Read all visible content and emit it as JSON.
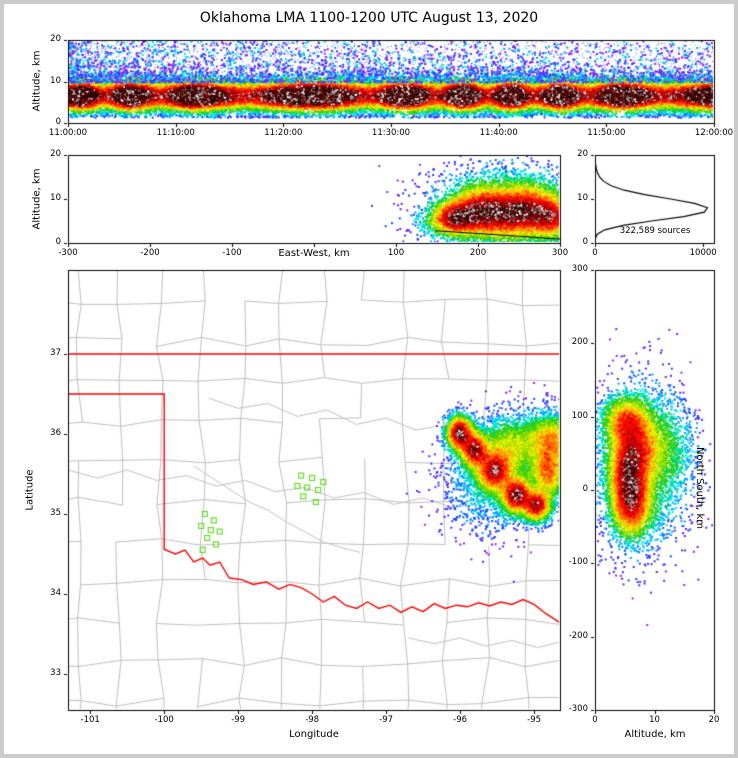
{
  "title": "Oklahoma LMA 1100-1200 UTC August 13, 2020",
  "chart_data": {
    "type": "heatmap",
    "title": "Oklahoma LMA 1100-1200 UTC August 13, 2020",
    "description": "Lightning Mapping Array source density: time-height panel, east-west cross-section, altitude histogram, plan-view map with Oklahoma county/state borders and LMA stations, north-south cross-section.",
    "total_sources": "322,589",
    "palette": [
      "#a020f0",
      "#6020ff",
      "#2040ff",
      "#00a0ff",
      "#00e8e0",
      "#00d060",
      "#40d000",
      "#a0e000",
      "#f0f000",
      "#ffb000",
      "#ff6000",
      "#ff1000",
      "#d00000",
      "#800000",
      "#300000"
    ],
    "sparkles": [
      "#777777",
      "#999999",
      "#bbbbbb",
      "#dddddd",
      "#f4f4f4"
    ],
    "panels": {
      "time_height": {
        "xlim": [
          0,
          3600
        ],
        "ylim": [
          0,
          20
        ],
        "xticks": {
          "values": [
            0,
            600,
            1200,
            1800,
            2400,
            3000,
            3600
          ],
          "labels": [
            "11:00:00",
            "11:10:00",
            "11:20:00",
            "11:30:00",
            "11:40:00",
            "11:50:00",
            "12:00:00"
          ]
        },
        "yticks": {
          "values": [
            0,
            10,
            20
          ],
          "labels": [
            "0",
            "10",
            "20"
          ]
        },
        "ylabel": "Altitude, km",
        "alt_mean": 6.8,
        "alt_sd": 2.3,
        "n_band": 30000,
        "n_high": 5200,
        "seed": 11
      },
      "east_west": {
        "xlim": [
          -300,
          300
        ],
        "ylim": [
          0,
          20
        ],
        "xticks": {
          "values": [
            -300,
            -200,
            -100,
            0,
            100,
            200,
            300
          ],
          "labels": [
            "-300",
            "-200",
            "-100",
            "",
            "100",
            "200",
            "300"
          ]
        },
        "yticks": {
          "values": [
            0,
            10,
            20
          ],
          "labels": [
            "0",
            "10",
            "20"
          ]
        },
        "xlabel": "East-West, km",
        "ylabel": "Altitude, km",
        "blobs": [
          [
            170,
            6,
            14,
            2,
            2
          ],
          [
            200,
            7.5,
            18,
            2.8,
            3.5
          ],
          [
            235,
            7,
            20,
            3,
            4
          ],
          [
            265,
            7.5,
            18,
            3,
            3
          ],
          [
            290,
            6,
            14,
            2.5,
            2
          ],
          [
            235,
            10,
            48,
            4.2,
            2
          ],
          [
            180,
            5,
            30,
            2.2,
            1
          ]
        ],
        "n": 15000,
        "seed": 22,
        "ground_line": [
          [
            148,
            2.8
          ],
          [
            300,
            0.9
          ]
        ]
      },
      "histogram": {
        "xlim": [
          0,
          11000
        ],
        "ylim": [
          0,
          20
        ],
        "xticks": {
          "values": [
            0,
            10000
          ],
          "labels": [
            "0",
            "10000"
          ]
        },
        "yticks": {
          "values": [
            0,
            10,
            20
          ],
          "labels": [
            "0",
            "10",
            "20"
          ]
        },
        "annotation": "322,589 sources",
        "profile": [
          [
            0,
            0
          ],
          [
            1,
            30
          ],
          [
            2,
            200
          ],
          [
            3,
            900
          ],
          [
            4,
            2600
          ],
          [
            5,
            5200
          ],
          [
            6,
            8200
          ],
          [
            7,
            10100
          ],
          [
            8,
            10400
          ],
          [
            9,
            9200
          ],
          [
            10,
            7000
          ],
          [
            11,
            4600
          ],
          [
            12,
            2700
          ],
          [
            13,
            1500
          ],
          [
            14,
            800
          ],
          [
            15,
            420
          ],
          [
            16,
            220
          ],
          [
            17,
            110
          ],
          [
            18,
            50
          ],
          [
            19,
            20
          ],
          [
            20,
            5
          ]
        ]
      },
      "plan_view": {
        "xlim": [
          -101.3,
          -94.65
        ],
        "ylim": [
          32.55,
          38.05
        ],
        "xticks": {
          "values": [
            -101,
            -100,
            -99,
            -98,
            -97,
            -96,
            -95
          ],
          "labels": [
            "-101",
            "-100",
            "-99",
            "-98",
            "-97",
            "-96",
            "-95"
          ]
        },
        "yticks": {
          "values": [
            33,
            34,
            35,
            36,
            37
          ],
          "labels": [
            "33",
            "34",
            "35",
            "36",
            "37"
          ]
        },
        "xlabel": "Longitude",
        "ylabel": "Latitude",
        "border_color": "#ff0000",
        "station_color": "#69db30",
        "stations": [
          [
            -99.45,
            35.0
          ],
          [
            -99.33,
            34.92
          ],
          [
            -99.5,
            34.85
          ],
          [
            -99.37,
            34.8
          ],
          [
            -99.25,
            34.78
          ],
          [
            -99.42,
            34.7
          ],
          [
            -99.3,
            34.62
          ],
          [
            -99.48,
            34.55
          ],
          [
            -98.15,
            35.48
          ],
          [
            -98.0,
            35.45
          ],
          [
            -98.2,
            35.35
          ],
          [
            -98.07,
            35.33
          ],
          [
            -97.92,
            35.3
          ],
          [
            -98.12,
            35.22
          ],
          [
            -97.85,
            35.4
          ],
          [
            -97.95,
            35.15
          ]
        ],
        "state_border": [
          [
            [
              -101.3,
              37
            ],
            [
              -94.65,
              37
            ]
          ],
          [
            [
              -101.3,
              36.5
            ],
            [
              -100,
              36.5
            ],
            [
              -100,
              34.56
            ],
            [
              -99.85,
              34.5
            ],
            [
              -99.72,
              34.55
            ],
            [
              -99.6,
              34.4
            ],
            [
              -99.48,
              34.45
            ],
            [
              -99.38,
              34.36
            ],
            [
              -99.25,
              34.4
            ],
            [
              -99.12,
              34.2
            ],
            [
              -98.95,
              34.18
            ],
            [
              -98.8,
              34.12
            ],
            [
              -98.62,
              34.15
            ],
            [
              -98.45,
              34.06
            ],
            [
              -98.3,
              34.12
            ],
            [
              -98.15,
              34.08
            ],
            [
              -98.0,
              34.0
            ],
            [
              -97.85,
              33.9
            ],
            [
              -97.7,
              33.97
            ],
            [
              -97.55,
              33.86
            ],
            [
              -97.4,
              33.82
            ],
            [
              -97.25,
              33.9
            ],
            [
              -97.1,
              33.82
            ],
            [
              -96.95,
              33.86
            ],
            [
              -96.8,
              33.77
            ],
            [
              -96.65,
              33.84
            ],
            [
              -96.5,
              33.78
            ],
            [
              -96.35,
              33.88
            ],
            [
              -96.2,
              33.82
            ],
            [
              -96.05,
              33.86
            ],
            [
              -95.9,
              33.84
            ],
            [
              -95.75,
              33.89
            ],
            [
              -95.6,
              33.85
            ],
            [
              -95.45,
              33.9
            ],
            [
              -95.3,
              33.87
            ],
            [
              -95.15,
              33.93
            ],
            [
              -95.0,
              33.87
            ],
            [
              -94.85,
              33.76
            ],
            [
              -94.65,
              33.64
            ]
          ]
        ],
        "rivers": [
          [
            [
              -101.3,
              35.55
            ],
            [
              -100.9,
              35.45
            ],
            [
              -100.5,
              35.55
            ],
            [
              -100.1,
              35.42
            ],
            [
              -99.7,
              35.48
            ],
            [
              -99.3,
              35.35
            ],
            [
              -98.9,
              35.42
            ],
            [
              -98.5,
              35.28
            ],
            [
              -98.1,
              35.33
            ],
            [
              -97.7,
              35.2
            ],
            [
              -97.3,
              35.27
            ],
            [
              -96.9,
              35.12
            ],
            [
              -96.5,
              35.2
            ],
            [
              -96.1,
              35.08
            ],
            [
              -95.75,
              35.12
            ]
          ],
          [
            [
              -99.4,
              36.45
            ],
            [
              -99.0,
              36.32
            ],
            [
              -98.6,
              36.38
            ],
            [
              -98.2,
              36.22
            ],
            [
              -97.8,
              36.3
            ],
            [
              -97.4,
              36.12
            ],
            [
              -97.0,
              36.2
            ],
            [
              -96.6,
              36.05
            ],
            [
              -96.3,
              36.1
            ]
          ],
          [
            [
              -99.6,
              35.6
            ],
            [
              -99.35,
              35.45
            ],
            [
              -99.1,
              35.3
            ],
            [
              -98.85,
              35.15
            ],
            [
              -98.6,
              35.05
            ],
            [
              -98.35,
              34.9
            ],
            [
              -98.1,
              34.78
            ],
            [
              -97.85,
              34.65
            ],
            [
              -97.6,
              34.58
            ],
            [
              -97.35,
              34.52
            ]
          ],
          [
            [
              -96.7,
              33.45
            ],
            [
              -96.35,
              33.38
            ],
            [
              -96.0,
              33.45
            ],
            [
              -95.65,
              33.35
            ],
            [
              -95.3,
              33.42
            ],
            [
              -94.95,
              33.33
            ],
            [
              -94.65,
              33.4
            ]
          ]
        ],
        "counties": {
          "seed": 55,
          "dlon": 0.55,
          "dlat": 0.5,
          "jitter": 0.06,
          "skip": 0.13,
          "color": "#bdbdbd",
          "river_color": "#c0c0c0"
        },
        "blobs": [
          [
            -96.02,
            36.02,
            0.09,
            0.11,
            2.5
          ],
          [
            -95.82,
            35.82,
            0.1,
            0.12,
            2.5
          ],
          [
            -95.55,
            35.55,
            0.13,
            0.14,
            3.5
          ],
          [
            -95.25,
            35.25,
            0.11,
            0.12,
            3
          ],
          [
            -94.98,
            35.12,
            0.1,
            0.1,
            2
          ],
          [
            -94.82,
            35.55,
            0.12,
            0.18,
            2.5
          ],
          [
            -94.78,
            35.95,
            0.18,
            0.15,
            2.5
          ],
          [
            -95.35,
            35.85,
            0.22,
            0.18,
            2
          ],
          [
            -95.6,
            35.4,
            0.35,
            0.33,
            1.3
          ],
          [
            -95.1,
            35.75,
            0.3,
            0.3,
            1.2
          ]
        ],
        "n": 22000,
        "seed": 44
      },
      "north_south": {
        "xlim": [
          0,
          20
        ],
        "ylim": [
          -300,
          300
        ],
        "xticks": {
          "values": [
            0,
            10,
            20
          ],
          "labels": [
            "0",
            "10",
            "20"
          ]
        },
        "yticks": {
          "values": [
            -300,
            -200,
            -100,
            0,
            100,
            200,
            300
          ],
          "labels": [
            "-300",
            "-200",
            "-100",
            "0",
            "100",
            "200",
            "300"
          ]
        },
        "xlabel": "Altitude, km",
        "ylabel": "North South, km",
        "blobs": [
          [
            5.5,
            20,
            1.7,
            25,
            3
          ],
          [
            6.5,
            60,
            2.2,
            28,
            3
          ],
          [
            6,
            -20,
            1.8,
            22,
            2.5
          ],
          [
            5,
            95,
            2,
            18,
            1.5
          ],
          [
            8,
            30,
            4,
            60,
            2
          ],
          [
            11,
            55,
            2.8,
            35,
            1
          ]
        ],
        "n": 13000,
        "seed": 33
      }
    }
  }
}
